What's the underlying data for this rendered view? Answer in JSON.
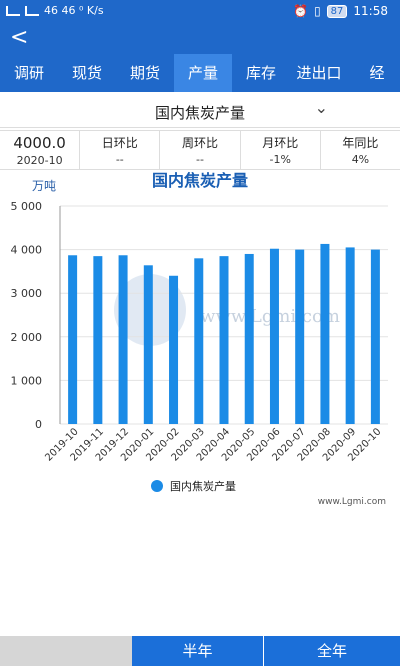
{
  "status": {
    "left": "46 46 ⁰ K/s",
    "battery": "87",
    "time": "11:58"
  },
  "tabs": [
    {
      "label": "调研",
      "active": false
    },
    {
      "label": "现货",
      "active": false
    },
    {
      "label": "期货",
      "active": false
    },
    {
      "label": "产量",
      "active": true
    },
    {
      "label": "库存",
      "active": false
    },
    {
      "label": "进出口",
      "active": false
    },
    {
      "label": "经",
      "active": false
    }
  ],
  "selector": {
    "label": "国内焦炭产量"
  },
  "stats": {
    "main": {
      "value": "4000.0",
      "date": "2020-10"
    },
    "items": [
      {
        "label": "日环比",
        "value": "--"
      },
      {
        "label": "周环比",
        "value": "--"
      },
      {
        "label": "月环比",
        "value": "-1%"
      },
      {
        "label": "年同比",
        "value": "4%"
      }
    ]
  },
  "chart_data": {
    "type": "bar",
    "title": "国内焦炭产量",
    "ylabel": "万吨",
    "categories": [
      "2019-10",
      "2019-11",
      "2019-12",
      "2020-01",
      "2020-02",
      "2020-03",
      "2020-04",
      "2020-05",
      "2020-06",
      "2020-07",
      "2020-08",
      "2020-09",
      "2020-10"
    ],
    "series": [
      {
        "name": "国内焦炭产量",
        "values": [
          3870,
          3850,
          3870,
          3640,
          3400,
          3800,
          3850,
          3900,
          4020,
          4000,
          4130,
          4050,
          4000
        ]
      }
    ],
    "yticks": [
      "0",
      "1 000",
      "2 000",
      "3 000",
      "4 000",
      "5 000"
    ],
    "ylim": [
      0,
      5000
    ],
    "grid": true,
    "legend": "bottom",
    "watermark": "www.Lgmi.com",
    "source": "www.Lgmi.com",
    "bar_color": "#1b8be6"
  },
  "bottom": {
    "half": "半年",
    "full": "全年"
  }
}
